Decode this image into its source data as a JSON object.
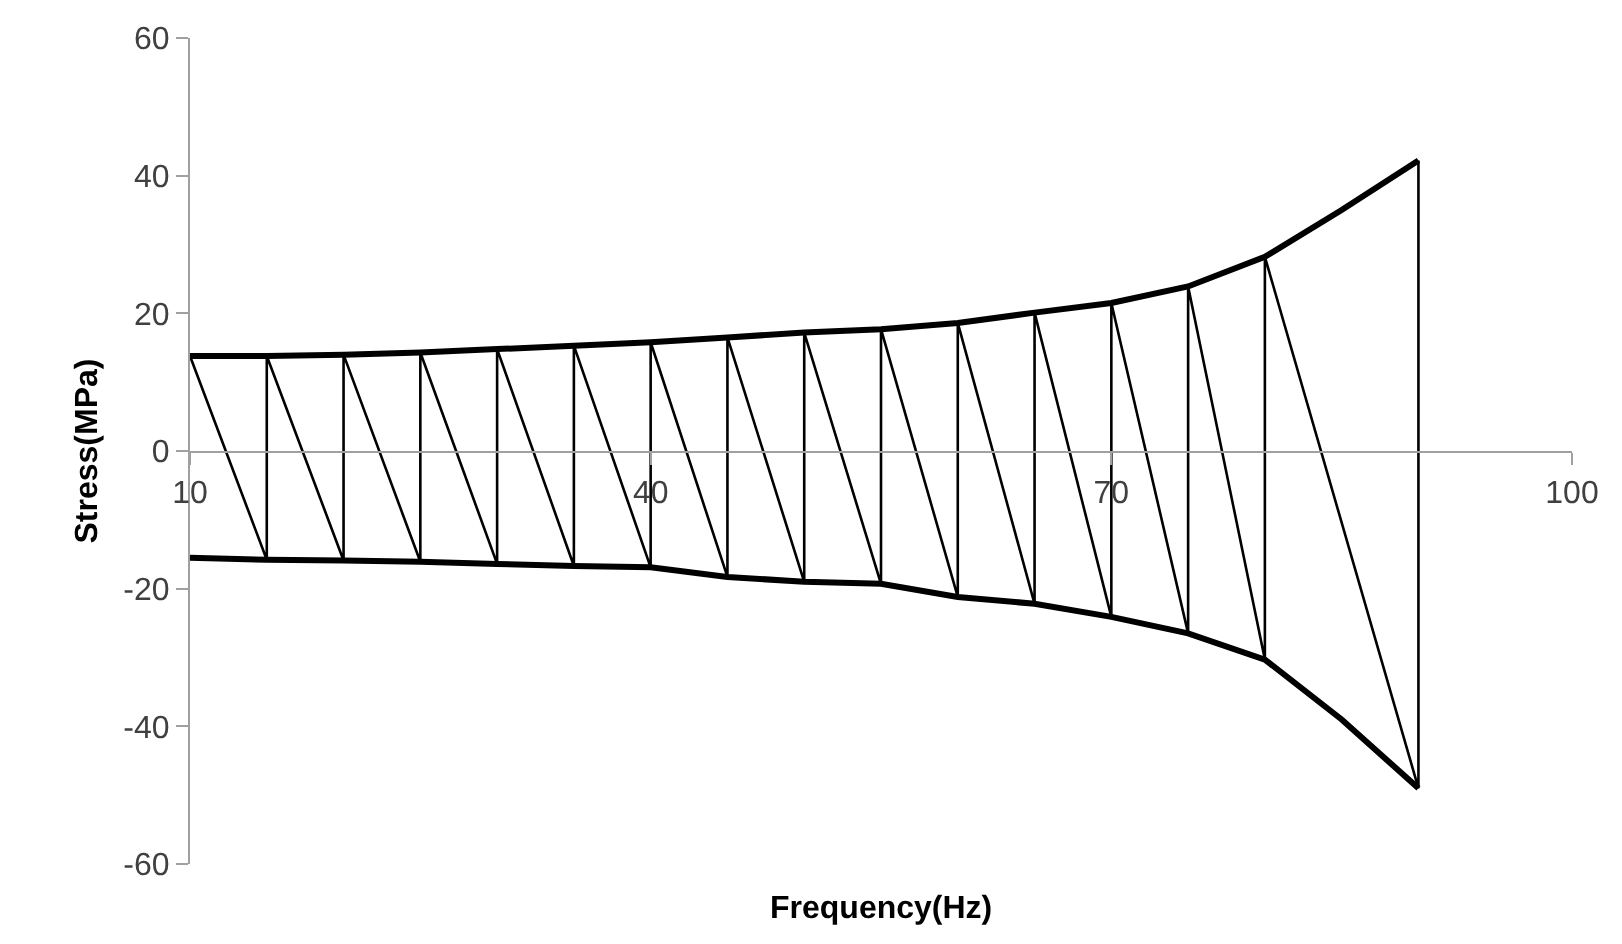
{
  "chart_data": {
    "type": "line",
    "xlabel": "Frequency(Hz)",
    "ylabel": "Stress(MPa)",
    "xlim": [
      10,
      100
    ],
    "xticks": [
      10,
      40,
      70,
      100
    ],
    "ylim": [
      -60,
      60
    ],
    "yticks": [
      -60,
      -40,
      -20,
      0,
      20,
      40,
      60
    ],
    "grid": false,
    "marker": "none",
    "line_style": "solid",
    "series": [
      {
        "color": "#000000",
        "x": [
          10,
          15,
          20,
          25,
          30,
          35,
          40,
          45,
          50,
          55,
          60,
          65,
          70,
          75,
          80,
          85,
          90
        ],
        "values": [
          13.8,
          13.8,
          14.0,
          14.3,
          14.8,
          15.3,
          15.8,
          16.5,
          17.2,
          17.7,
          18.6,
          20.1,
          21.5,
          23.9,
          28.2,
          35,
          42.2
        ]
      },
      {
        "color": "#000000",
        "x": [
          10,
          15,
          20,
          25,
          30,
          35,
          40,
          45,
          50,
          55,
          60,
          65,
          70,
          75,
          80,
          85,
          90
        ],
        "values": [
          -15.5,
          -15.8,
          -15.9,
          -16.1,
          -16.4,
          -16.7,
          -16.9,
          -18.3,
          -19.0,
          -19.3,
          -21.2,
          -22.2,
          -24.1,
          -26.5,
          -30.3,
          -39,
          -49
        ]
      },
      {
        "color": "#000000",
        "x": [
          10,
          15,
          15,
          20,
          20,
          25,
          25,
          30,
          30,
          35,
          35,
          40,
          40,
          45,
          45,
          50,
          50,
          55,
          55,
          60,
          60,
          65,
          65,
          70,
          70,
          75,
          75,
          80,
          80,
          90,
          90
        ],
        "values": [
          13.8,
          -15.8,
          13.8,
          -15.9,
          14.0,
          -16.1,
          14.3,
          -16.4,
          14.8,
          -16.7,
          15.3,
          -16.9,
          15.8,
          -18.3,
          16.5,
          -19.0,
          17.2,
          -19.3,
          17.7,
          -21.2,
          18.6,
          -22.2,
          20.1,
          -24.1,
          21.5,
          -26.5,
          23.9,
          -30.3,
          28.2,
          -49,
          42.2
        ]
      }
    ]
  }
}
